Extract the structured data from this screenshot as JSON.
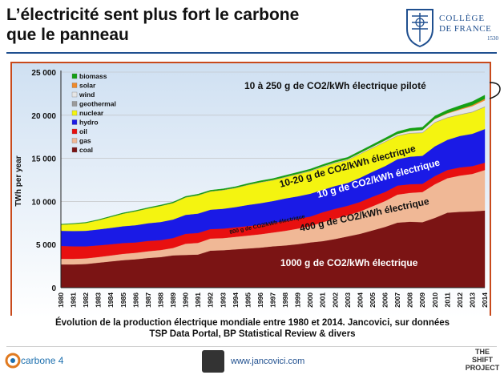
{
  "header": {
    "title_line1": "L’électricité sent plus fort le carbone",
    "title_line2": "que le panneau",
    "logo_name": "COLLÈGE",
    "logo_name2": "DE FRANCE",
    "logo_year": "1530"
  },
  "chart_data": {
    "type": "area",
    "stacked": true,
    "ylabel": "TWh per year",
    "xlabel": "",
    "ylim": [
      0,
      25000
    ],
    "yticks": [
      "0",
      "5 000",
      "10 000",
      "15 000",
      "20 000",
      "25 000"
    ],
    "ytick_values": [
      0,
      5000,
      10000,
      15000,
      20000,
      25000
    ],
    "x": [
      "1980",
      "1981",
      "1982",
      "1983",
      "1984",
      "1985",
      "1986",
      "1987",
      "1988",
      "1989",
      "1990",
      "1991",
      "1992",
      "1993",
      "1994",
      "1995",
      "1996",
      "1997",
      "1998",
      "1999",
      "2000",
      "2001",
      "2002",
      "2003",
      "2004",
      "2005",
      "2006",
      "2007",
      "2008",
      "2009",
      "2010",
      "2011",
      "2012",
      "2013",
      "2014"
    ],
    "series": [
      {
        "name": "coal",
        "color": "#7b1414",
        "values": [
          2700,
          2700,
          2750,
          2900,
          3050,
          3200,
          3300,
          3450,
          3550,
          3750,
          3800,
          3850,
          4300,
          4350,
          4450,
          4550,
          4650,
          4800,
          4900,
          5050,
          5250,
          5400,
          5650,
          5950,
          6250,
          6650,
          7050,
          7550,
          7650,
          7600,
          8100,
          8700,
          8800,
          8850,
          8950
        ]
      },
      {
        "name": "gas",
        "color": "#f0b896",
        "values": [
          650,
          650,
          650,
          660,
          690,
          730,
          750,
          780,
          820,
          860,
          1300,
          1350,
          1400,
          1400,
          1450,
          1500,
          1550,
          1600,
          1700,
          1800,
          1900,
          2200,
          2350,
          2450,
          2600,
          2800,
          3000,
          3250,
          3350,
          3500,
          3900,
          4000,
          4200,
          4350,
          4700
        ]
      },
      {
        "name": "oil",
        "color": "#e81010",
        "values": [
          1500,
          1450,
          1400,
          1350,
          1300,
          1250,
          1200,
          1200,
          1150,
          1150,
          1150,
          1150,
          1100,
          1100,
          1100,
          1100,
          1100,
          1100,
          1150,
          1150,
          1100,
          1150,
          1150,
          1100,
          1100,
          1100,
          1050,
          1050,
          1000,
          950,
          950,
          950,
          950,
          900,
          850
        ]
      },
      {
        "name": "hydro",
        "color": "#1a1ae6",
        "values": [
          1750,
          1780,
          1800,
          1850,
          1900,
          1950,
          2000,
          2050,
          2100,
          2150,
          2200,
          2250,
          2250,
          2300,
          2350,
          2450,
          2500,
          2550,
          2600,
          2600,
          2650,
          2600,
          2650,
          2650,
          2800,
          2900,
          3000,
          3050,
          3200,
          3250,
          3450,
          3500,
          3650,
          3750,
          3900
        ]
      },
      {
        "name": "nuclear",
        "color": "#f4f410",
        "values": [
          700,
          800,
          900,
          1050,
          1250,
          1450,
          1600,
          1700,
          1850,
          1900,
          2000,
          2100,
          2100,
          2150,
          2200,
          2300,
          2400,
          2400,
          2450,
          2550,
          2600,
          2650,
          2650,
          2650,
          2750,
          2750,
          2800,
          2700,
          2700,
          2650,
          2750,
          2550,
          2450,
          2500,
          2550
        ]
      },
      {
        "name": "geothermal",
        "color": "#9a9a9a",
        "values": [
          15,
          15,
          15,
          15,
          20,
          20,
          20,
          20,
          20,
          25,
          30,
          35,
          35,
          40,
          40,
          45,
          45,
          45,
          50,
          50,
          55,
          55,
          55,
          55,
          60,
          60,
          60,
          65,
          65,
          65,
          70,
          70,
          70,
          70,
          75
        ]
      },
      {
        "name": "wind",
        "color": "#e6e6e6",
        "values": [
          0,
          0,
          0,
          0,
          0,
          0,
          0,
          0,
          0,
          0,
          5,
          5,
          5,
          5,
          5,
          5,
          10,
          10,
          15,
          20,
          30,
          40,
          50,
          60,
          80,
          100,
          130,
          170,
          220,
          270,
          340,
          430,
          520,
          630,
          700
        ]
      },
      {
        "name": "solar",
        "color": "#f08a2a",
        "values": [
          0,
          0,
          0,
          0,
          0,
          0,
          0,
          0,
          0,
          0,
          0,
          0,
          0,
          0,
          0,
          0,
          0,
          0,
          0,
          0,
          1,
          2,
          3,
          4,
          5,
          6,
          7,
          9,
          12,
          20,
          34,
          60,
          100,
          135,
          185
        ]
      },
      {
        "name": "biomass",
        "color": "#14a014",
        "values": [
          50,
          55,
          60,
          65,
          70,
          75,
          80,
          85,
          90,
          95,
          100,
          105,
          110,
          115,
          120,
          130,
          140,
          150,
          160,
          165,
          170,
          175,
          185,
          200,
          210,
          230,
          250,
          260,
          280,
          300,
          320,
          340,
          370,
          400,
          420
        ]
      }
    ],
    "annotations": [
      {
        "id": "controllable",
        "text": "10 à 250 g de CO2/kWh électrique piloté"
      },
      {
        "id": "hydro_nuclear",
        "text": "10-20 g de CO2/kWh électrique"
      },
      {
        "id": "hydro",
        "text": "10 g de CO2/kWh électrique"
      },
      {
        "id": "oil",
        "text": "800 g de CO2/kWh électrique"
      },
      {
        "id": "gas",
        "text": "400 g de CO2/kWh électrique"
      },
      {
        "id": "coal",
        "text": "1000 g de CO2/kWh électrique"
      }
    ]
  },
  "caption": {
    "line1": "Évolution de la production électrique mondiale entre 1980 et 2014. Jancovici, sur données",
    "line2": "TSP Data Portal, BP Statistical Review & divers"
  },
  "footer": {
    "left_brand": "carbone 4",
    "url": "www.jancovici.com",
    "right_brand_1": "THE SHIFT",
    "right_brand_2": "PROJECT"
  },
  "colors": {
    "title_rule": "#1f4f8f",
    "chart_frame": "#c84a1c",
    "chart_bg_top": "#cfe0f2",
    "chart_bg_bottom": "#ffffff"
  }
}
